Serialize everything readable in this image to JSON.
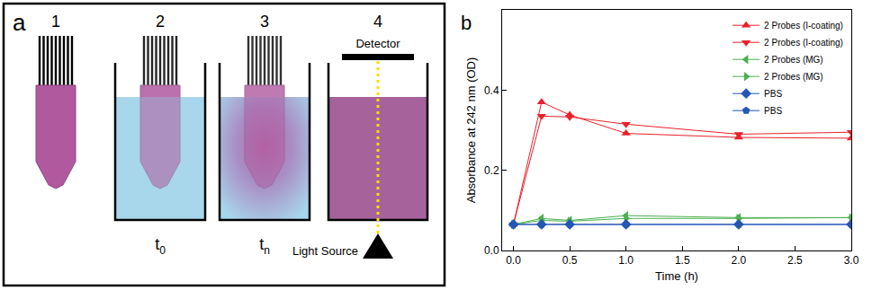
{
  "diagram": {
    "letter": "a",
    "steps": [
      {
        "number": "1"
      },
      {
        "number": "2",
        "time": {
          "text": "t",
          "subscript": "0"
        }
      },
      {
        "number": "3",
        "time": {
          "text": "t",
          "subscript": "n"
        }
      },
      {
        "number": "4",
        "detector": "Detector",
        "source": "Light Source"
      }
    ]
  },
  "chart_data": {
    "type": "line",
    "annotations": [
      {
        "text": "b"
      }
    ],
    "x_label": "Time (h)",
    "y_label": "Absorbance at 242 nm (OD)",
    "x": [
      0,
      0.25,
      0.5,
      1,
      2,
      3
    ],
    "xlim": [
      -0.1,
      3.0
    ],
    "xticks": [
      {
        "value": 0,
        "label": "0.0"
      },
      {
        "value": 0.5,
        "label": "0.5"
      },
      {
        "value": 1,
        "label": "1.0"
      },
      {
        "value": 1.5,
        "label": "1.5"
      },
      {
        "value": 2,
        "label": "2.0"
      },
      {
        "value": 2.5,
        "label": "2.5"
      },
      {
        "value": 3,
        "label": "3.0"
      }
    ],
    "ylim": [
      0,
      0.6
    ],
    "yticks": [
      {
        "value": 0,
        "label": "0.0"
      },
      {
        "value": 0.2,
        "label": "0.2"
      },
      {
        "value": 0.4,
        "label": "0.4"
      }
    ],
    "grid": false,
    "legend": "top right",
    "series": [
      {
        "name": "2 Probes (I-coating)",
        "color": "#e8212b",
        "marker": "triangle-up",
        "values": [
          0.065,
          0.37,
          0.338,
          0.292,
          0.282,
          0.28
        ]
      },
      {
        "name": "2 Probes (I-coating)",
        "color": "#e8212b",
        "marker": "triangle-down",
        "values": [
          0.065,
          0.335,
          0.333,
          0.315,
          0.29,
          0.295
        ]
      },
      {
        "name": "2 Probes (MG)",
        "color": "#4cb050",
        "marker": "triangle-left",
        "values": [
          0.065,
          0.08,
          0.075,
          0.087,
          0.082,
          0.082
        ]
      },
      {
        "name": "2 Probes (MG)",
        "color": "#4cb050",
        "marker": "triangle-right",
        "values": [
          0.065,
          0.075,
          0.073,
          0.08,
          0.08,
          0.082
        ]
      },
      {
        "name": "PBS",
        "color": "#2456b4",
        "marker": "diamond",
        "values": [
          0.065,
          0.065,
          0.065,
          0.065,
          0.065,
          0.065
        ]
      },
      {
        "name": "PBS",
        "color": "#2456b4",
        "marker": "pentagon",
        "values": [
          0.065,
          0.065,
          0.065,
          0.065,
          0.065,
          0.065
        ]
      }
    ]
  }
}
